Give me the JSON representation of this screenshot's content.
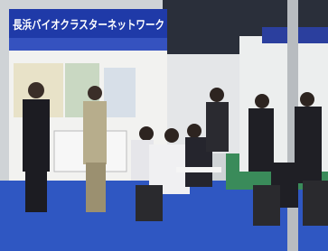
{
  "banner": {
    "title": "長浜バイオクラスターネットワーク"
  }
}
